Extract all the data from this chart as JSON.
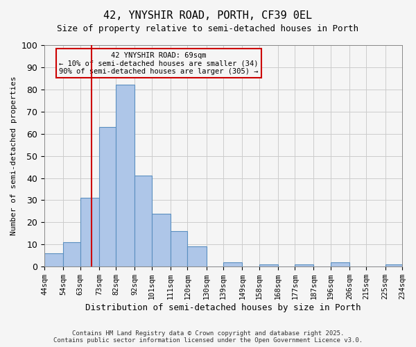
{
  "title": "42, YNYSHIR ROAD, PORTH, CF39 0EL",
  "subtitle": "Size of property relative to semi-detached houses in Porth",
  "xlabel": "Distribution of semi-detached houses by size in Porth",
  "ylabel": "Number of semi-detached properties",
  "footer_line1": "Contains HM Land Registry data © Crown copyright and database right 2025.",
  "footer_line2": "Contains public sector information licensed under the Open Government Licence v3.0.",
  "annotation_line1": "42 YNYSHIR ROAD: 69sqm",
  "annotation_line2": "← 10% of semi-detached houses are smaller (34)",
  "annotation_line3": "90% of semi-detached houses are larger (305) →",
  "property_size": 69,
  "bins": [
    44,
    54,
    63,
    73,
    82,
    92,
    101,
    111,
    120,
    130,
    139,
    149,
    158,
    168,
    177,
    187,
    196,
    206,
    215,
    225,
    234
  ],
  "counts": [
    6,
    11,
    31,
    63,
    82,
    41,
    24,
    16,
    9,
    0,
    2,
    0,
    1,
    0,
    1,
    0,
    2,
    0,
    0,
    1
  ],
  "bar_color": "#aec6e8",
  "bar_edge_color": "#5a8fc0",
  "highlight_line_color": "#cc0000",
  "annotation_box_color": "#cc0000",
  "grid_color": "#cccccc",
  "background_color": "#f5f5f5",
  "ylim": [
    0,
    100
  ],
  "yticks": [
    0,
    10,
    20,
    30,
    40,
    50,
    60,
    70,
    80,
    90,
    100
  ]
}
